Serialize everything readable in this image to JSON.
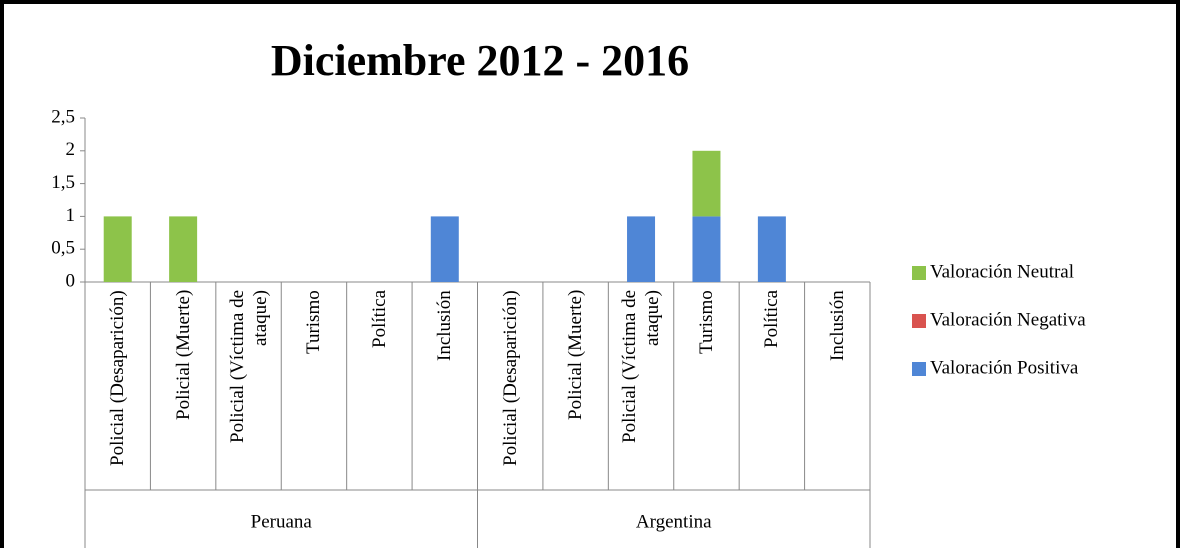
{
  "chart_data": {
    "type": "stacked_bar",
    "title": "Diciembre 2012 - 2016",
    "categories": [
      "Policial (Desaparición)",
      "Policial (Muerte)",
      "Policial (Víctima de ataque)",
      "Turismo",
      "Política",
      "Inclusión",
      "Policial (Desaparición)",
      "Policial (Muerte)",
      "Policial (Víctima de ataque)",
      "Turismo",
      "Política",
      "Inclusión"
    ],
    "groups": [
      "Peruana",
      "Argentina"
    ],
    "series": [
      {
        "name": "Valoración Positiva",
        "color": "#4f86d6",
        "values": [
          0,
          0,
          0,
          0,
          0,
          1,
          0,
          0,
          1,
          1,
          1,
          0
        ]
      },
      {
        "name": "Valoración Negativa",
        "color": "#d9534f",
        "values": [
          0,
          0,
          0,
          0,
          0,
          0,
          0,
          0,
          0,
          0,
          0,
          0
        ]
      },
      {
        "name": "Valoración Neutral",
        "color": "#8dc34a",
        "values": [
          1,
          1,
          0,
          0,
          0,
          0,
          0,
          0,
          0,
          1,
          0,
          0
        ]
      }
    ],
    "ylim": [
      0,
      2.5
    ],
    "yticks": [
      0,
      {
        "value": 0.5,
        "label": "0,5"
      },
      1,
      {
        "value": 1.5,
        "label": "1,5"
      },
      2,
      {
        "value": 2.5,
        "label": "2,5"
      }
    ],
    "grid": false,
    "legend": "right"
  }
}
